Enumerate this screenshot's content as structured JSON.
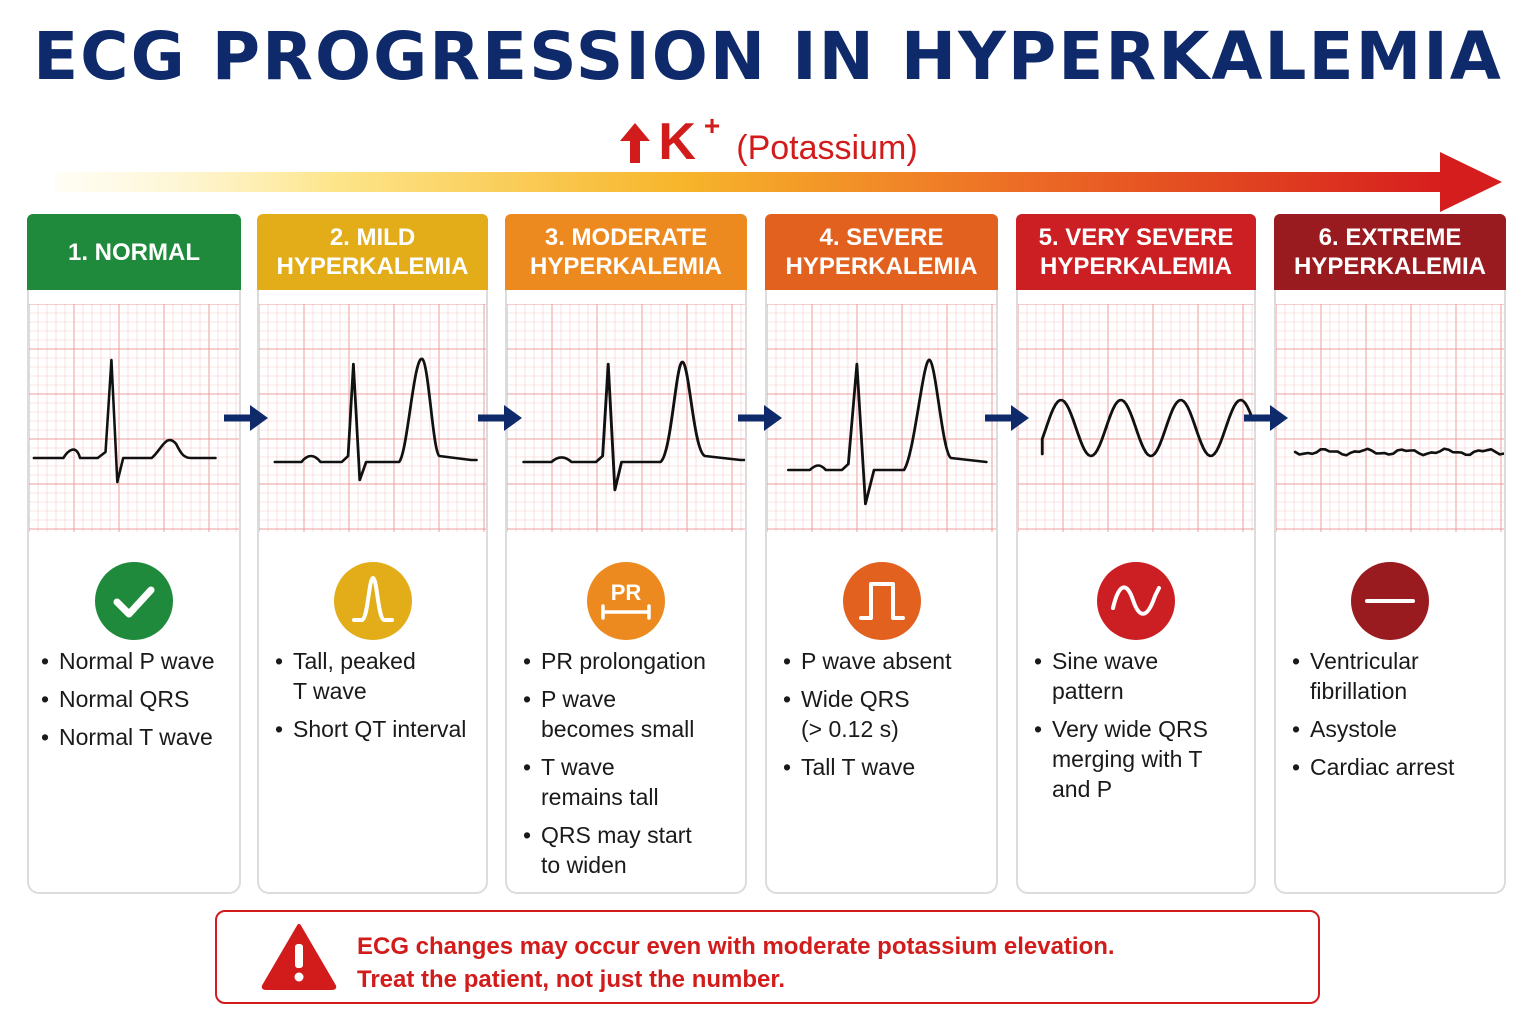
{
  "title": "ECG PROGRESSION IN HYPERKALEMIA",
  "potassium": {
    "symbol": "K",
    "superscript": "+",
    "label": "(Potassium)"
  },
  "colors": {
    "title": "#0f2a6b",
    "alert_red": "#d21c1c",
    "grid_minor": "#f6caca",
    "grid_major": "#ec9c9c",
    "stage_arrow": "#0f2a6b"
  },
  "stages": [
    {
      "header": [
        "1. NORMAL"
      ],
      "color": "#1f8a3b",
      "icon": "checkmark-icon",
      "waveform": "normal-sinus",
      "bullets": [
        [
          "Normal P wave"
        ],
        [
          "Normal QRS"
        ],
        [
          "Normal T wave"
        ]
      ]
    },
    {
      "header": [
        "2. MILD",
        "HYPERKALEMIA"
      ],
      "color": "#e2ad19",
      "icon": "peaked-t-wave-icon",
      "waveform": "peaked-t",
      "bullets": [
        [
          "Tall, peaked",
          "T wave"
        ],
        [
          "Short QT interval"
        ]
      ]
    },
    {
      "header": [
        "3. MODERATE",
        "HYPERKALEMIA"
      ],
      "color": "#ec8a1f",
      "icon": "pr-interval-icon",
      "icon_text": "PR",
      "waveform": "pr-prolongation",
      "bullets": [
        [
          "PR prolongation"
        ],
        [
          "P wave",
          "becomes small"
        ],
        [
          "T wave",
          "remains tall"
        ],
        [
          "QRS may start",
          "to widen"
        ]
      ]
    },
    {
      "header": [
        "4. SEVERE",
        "HYPERKALEMIA"
      ],
      "color": "#e2611e",
      "icon": "wide-qrs-icon",
      "waveform": "p-absent-wide-qrs",
      "bullets": [
        [
          "P wave absent"
        ],
        [
          "Wide QRS",
          "(> 0.12 s)"
        ],
        [
          "Tall T wave"
        ]
      ]
    },
    {
      "header": [
        "5. VERY SEVERE",
        "HYPERKALEMIA"
      ],
      "color": "#cc1f24",
      "icon": "sine-wave-icon",
      "waveform": "sine-wave",
      "bullets": [
        [
          "Sine wave",
          "pattern"
        ],
        [
          "Very wide QRS",
          "merging with T",
          "and P"
        ]
      ]
    },
    {
      "header": [
        "6. EXTREME",
        "HYPERKALEMIA"
      ],
      "color": "#9a1b1f",
      "icon": "flatline-icon",
      "waveform": "near-flatline",
      "bullets": [
        [
          "Ventricular",
          "fibrillation"
        ],
        [
          "Asystole"
        ],
        [
          "Cardiac arrest"
        ]
      ]
    }
  ],
  "warning": {
    "icon": "warning-triangle-icon",
    "lines": [
      "ECG changes may occur even with moderate potassium elevation.",
      "Treat the patient, not just the number."
    ]
  }
}
